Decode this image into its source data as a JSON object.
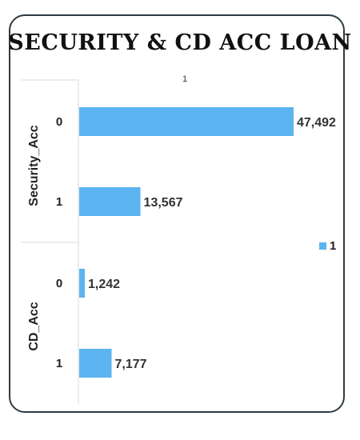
{
  "chart_data": {
    "type": "bar",
    "orientation": "horizontal",
    "title": "SECURITY & CD ACC LOAN",
    "top_label": "1",
    "groups": [
      {
        "name": "Security_Acc",
        "categories": [
          "0",
          "1"
        ],
        "values": [
          47492,
          13567
        ],
        "labels": [
          "47,492",
          "13,567"
        ]
      },
      {
        "name": "CD_Acc",
        "categories": [
          "0",
          "1"
        ],
        "values": [
          1242,
          7177
        ],
        "labels": [
          "1,242",
          "7,177"
        ]
      }
    ],
    "series": [
      {
        "name": "1",
        "color": "#5bb4f0"
      }
    ],
    "xlim": [
      0,
      47492
    ],
    "legend_position": "right",
    "grid": false
  }
}
